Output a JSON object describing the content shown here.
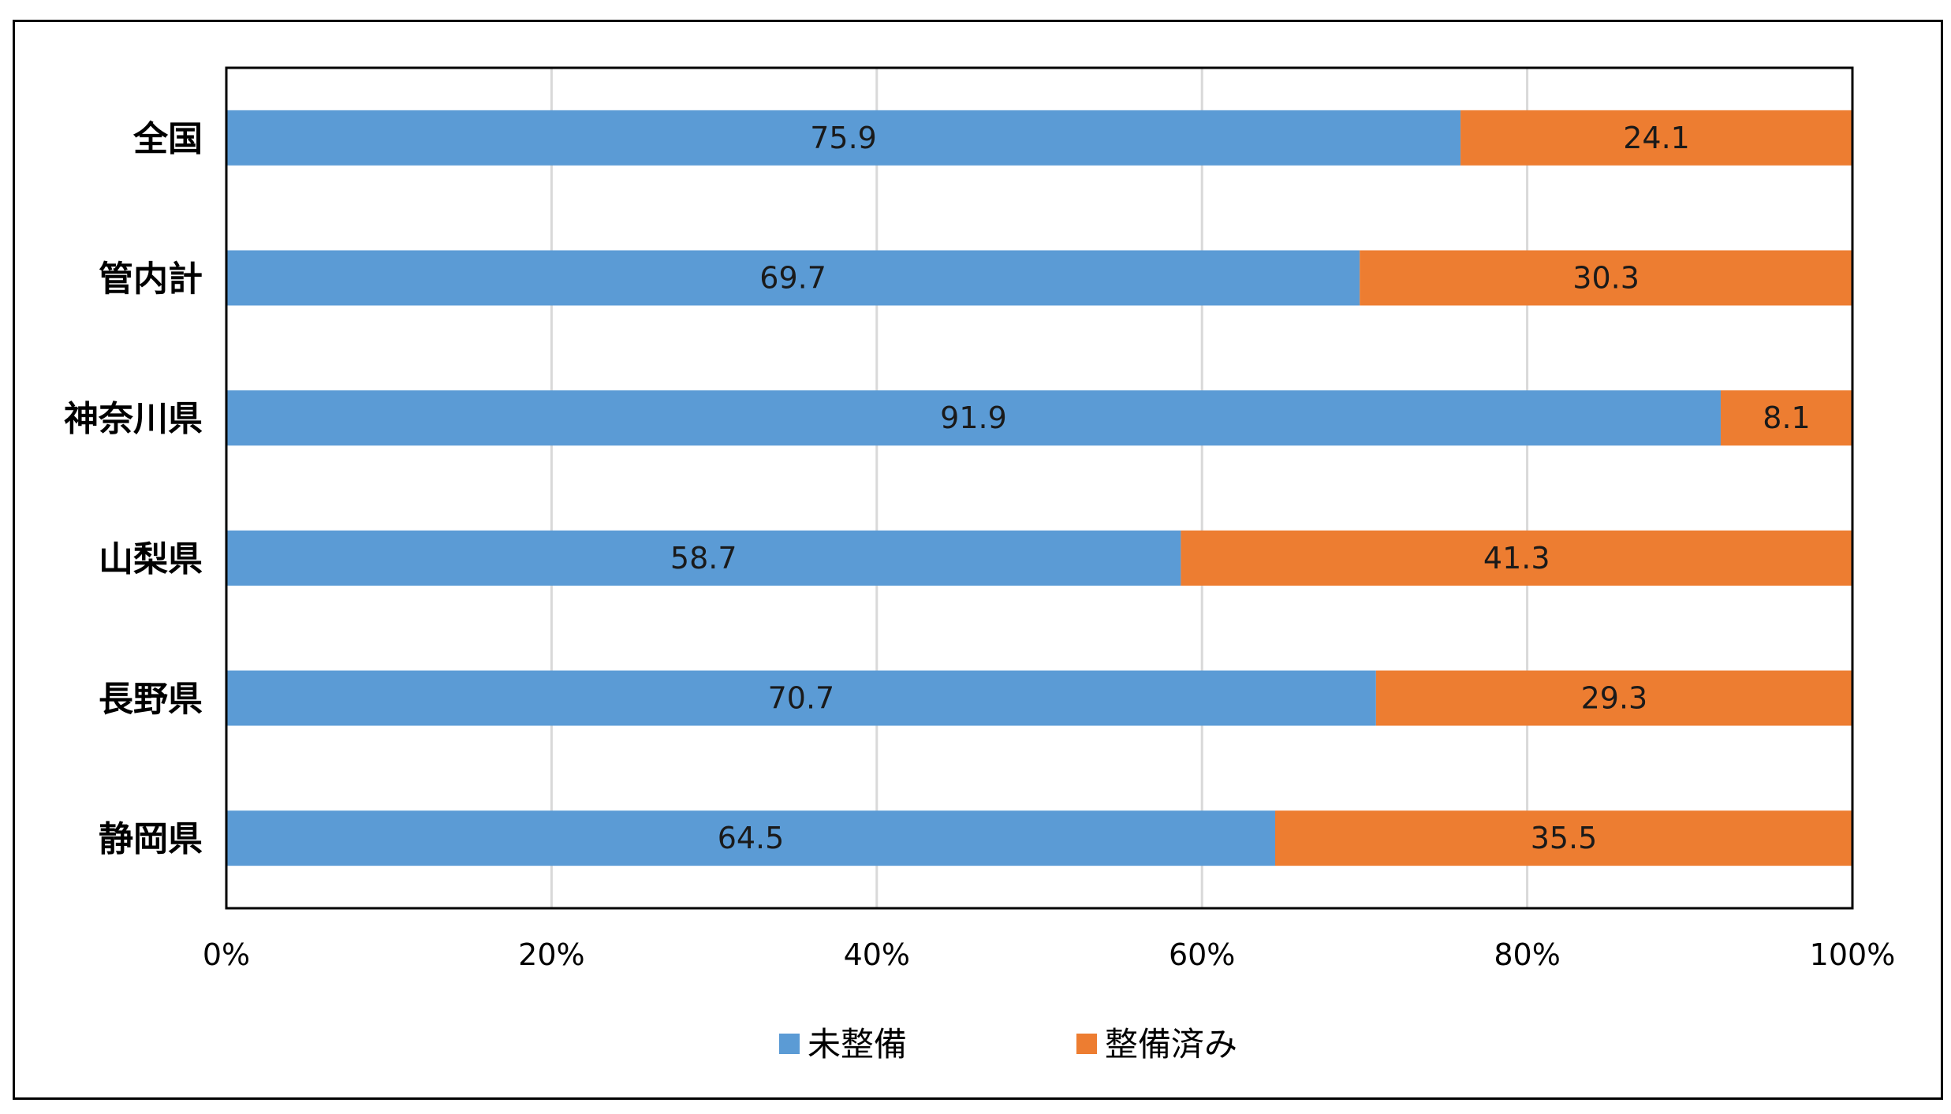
{
  "chart_data": {
    "type": "bar",
    "orientation": "horizontal",
    "stacked": "percent",
    "categories": [
      "全国",
      "管内計",
      "神奈川県",
      "山梨県",
      "長野県",
      "静岡県"
    ],
    "series": [
      {
        "name": "未整備",
        "values": [
          75.9,
          69.7,
          91.9,
          58.7,
          70.7,
          64.5
        ],
        "color": "#5b9bd5"
      },
      {
        "name": "整備済み",
        "values": [
          24.1,
          30.3,
          8.1,
          41.3,
          29.3,
          35.5
        ],
        "color": "#ed7d31"
      }
    ],
    "xticks": [
      "0%",
      "20%",
      "40%",
      "60%",
      "80%",
      "100%"
    ],
    "xlim": [
      0,
      100
    ],
    "grid": true,
    "legend_position": "bottom",
    "title": "",
    "xlabel": "",
    "ylabel": ""
  }
}
